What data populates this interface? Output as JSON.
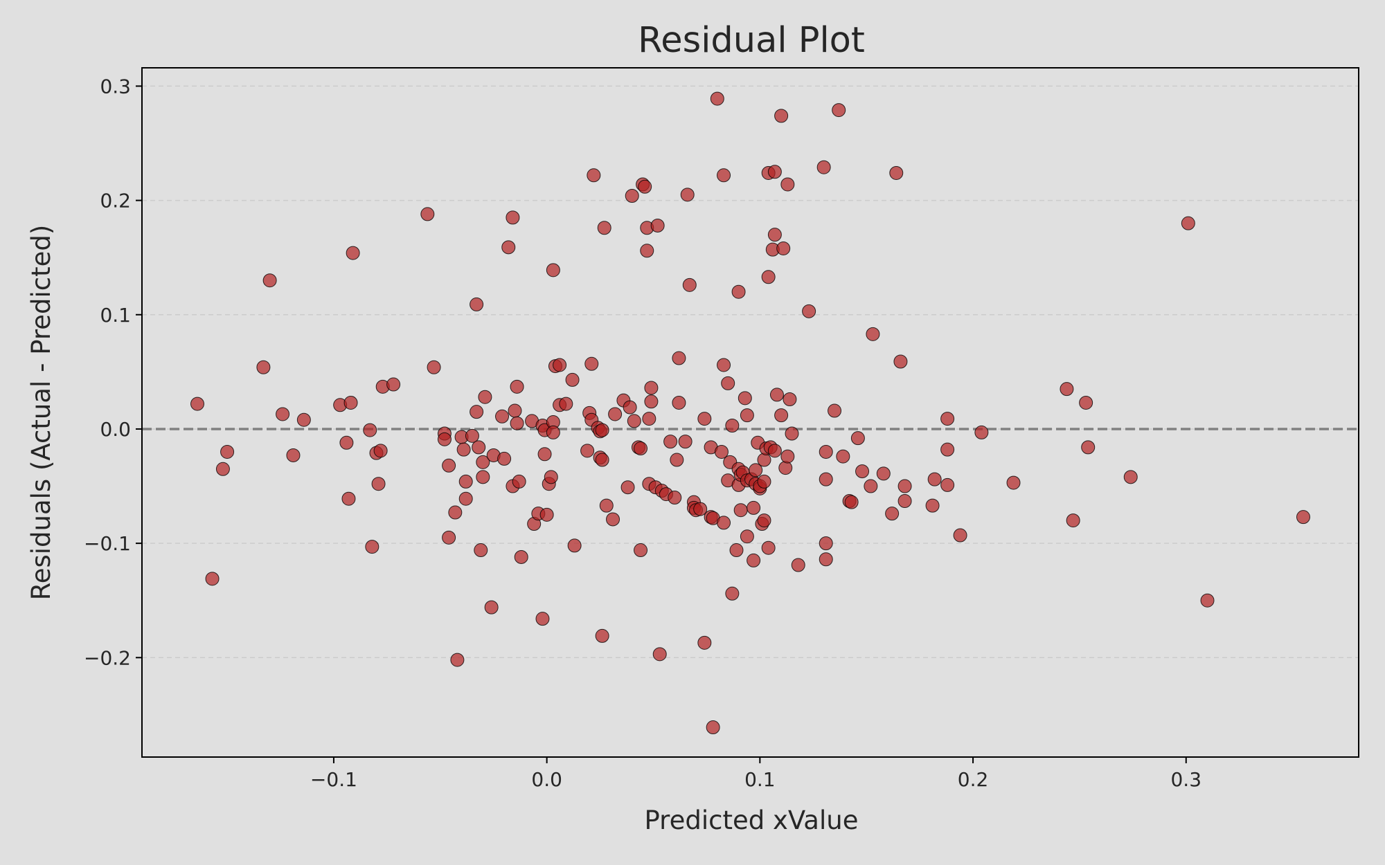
{
  "chart_data": {
    "type": "scatter",
    "title": "Residual Plot",
    "xlabel": "Predicted xValue",
    "ylabel": "Residuals (Actual - Predicted)",
    "xlim": [
      -0.19,
      0.381
    ],
    "ylim": [
      -0.287,
      0.316
    ],
    "xticks": [
      -0.1,
      0.0,
      0.1,
      0.2,
      0.3
    ],
    "xtick_labels": [
      "−0.1",
      "0.0",
      "0.1",
      "0.2",
      "0.3"
    ],
    "yticks": [
      -0.2,
      -0.1,
      0.0,
      0.1,
      0.2,
      0.3
    ],
    "ytick_labels": [
      "−0.2",
      "−0.1",
      "0.0",
      "0.1",
      "0.2",
      "0.3"
    ],
    "grid": "horizontal dashed",
    "zero_line": 0,
    "colors": {
      "background": "#e0e0e0",
      "point_fill": "#b22222",
      "point_edge": "#000000",
      "zero_line": "#808080",
      "grid": "#cccccc"
    },
    "points": [
      [
        -0.164,
        0.022
      ],
      [
        -0.157,
        -0.131
      ],
      [
        -0.152,
        -0.035
      ],
      [
        -0.15,
        -0.02
      ],
      [
        -0.133,
        0.054
      ],
      [
        -0.13,
        0.13
      ],
      [
        -0.124,
        0.013
      ],
      [
        -0.119,
        -0.023
      ],
      [
        -0.114,
        0.008
      ],
      [
        -0.097,
        0.021
      ],
      [
        -0.094,
        -0.012
      ],
      [
        -0.093,
        -0.061
      ],
      [
        -0.092,
        0.023
      ],
      [
        -0.091,
        0.154
      ],
      [
        -0.083,
        -0.001
      ],
      [
        -0.082,
        -0.103
      ],
      [
        -0.08,
        -0.021
      ],
      [
        -0.079,
        -0.048
      ],
      [
        -0.078,
        -0.019
      ],
      [
        -0.077,
        0.037
      ],
      [
        -0.072,
        0.039
      ],
      [
        -0.056,
        0.188
      ],
      [
        -0.053,
        0.054
      ],
      [
        -0.048,
        -0.004
      ],
      [
        -0.048,
        -0.009
      ],
      [
        -0.046,
        -0.032
      ],
      [
        -0.046,
        -0.095
      ],
      [
        -0.043,
        -0.073
      ],
      [
        -0.042,
        -0.202
      ],
      [
        -0.04,
        -0.007
      ],
      [
        -0.039,
        -0.018
      ],
      [
        -0.038,
        -0.046
      ],
      [
        -0.038,
        -0.061
      ],
      [
        -0.035,
        -0.006
      ],
      [
        -0.033,
        0.109
      ],
      [
        -0.033,
        0.015
      ],
      [
        -0.032,
        -0.016
      ],
      [
        -0.031,
        -0.106
      ],
      [
        -0.03,
        -0.029
      ],
      [
        -0.03,
        -0.042
      ],
      [
        -0.029,
        0.028
      ],
      [
        -0.026,
        -0.156
      ],
      [
        -0.025,
        -0.023
      ],
      [
        -0.021,
        0.011
      ],
      [
        -0.02,
        -0.026
      ],
      [
        -0.018,
        0.159
      ],
      [
        -0.016,
        -0.05
      ],
      [
        -0.016,
        0.185
      ],
      [
        -0.015,
        0.016
      ],
      [
        -0.014,
        0.005
      ],
      [
        -0.014,
        0.037
      ],
      [
        -0.013,
        -0.046
      ],
      [
        -0.012,
        -0.112
      ],
      [
        -0.007,
        0.007
      ],
      [
        -0.006,
        -0.083
      ],
      [
        -0.004,
        -0.074
      ],
      [
        -0.002,
        -0.166
      ],
      [
        -0.002,
        0.003
      ],
      [
        -0.001,
        -0.022
      ],
      [
        -0.001,
        -0.001
      ],
      [
        0.0,
        -0.075
      ],
      [
        0.001,
        -0.048
      ],
      [
        0.002,
        -0.042
      ],
      [
        0.003,
        0.139
      ],
      [
        0.003,
        0.006
      ],
      [
        0.003,
        -0.003
      ],
      [
        0.004,
        0.055
      ],
      [
        0.006,
        0.056
      ],
      [
        0.006,
        0.021
      ],
      [
        0.009,
        0.022
      ],
      [
        0.012,
        0.043
      ],
      [
        0.013,
        -0.102
      ],
      [
        0.019,
        -0.019
      ],
      [
        0.02,
        0.014
      ],
      [
        0.021,
        0.057
      ],
      [
        0.021,
        0.008
      ],
      [
        0.022,
        0.222
      ],
      [
        0.024,
        0.001
      ],
      [
        0.025,
        -0.025
      ],
      [
        0.025,
        -0.002
      ],
      [
        0.026,
        -0.001
      ],
      [
        0.026,
        -0.181
      ],
      [
        0.026,
        -0.027
      ],
      [
        0.027,
        0.176
      ],
      [
        0.028,
        -0.067
      ],
      [
        0.031,
        -0.079
      ],
      [
        0.032,
        0.013
      ],
      [
        0.036,
        0.025
      ],
      [
        0.038,
        -0.051
      ],
      [
        0.039,
        0.019
      ],
      [
        0.04,
        0.204
      ],
      [
        0.041,
        0.007
      ],
      [
        0.043,
        -0.016
      ],
      [
        0.044,
        -0.017
      ],
      [
        0.044,
        -0.106
      ],
      [
        0.045,
        0.214
      ],
      [
        0.046,
        0.212
      ],
      [
        0.047,
        0.156
      ],
      [
        0.047,
        0.176
      ],
      [
        0.048,
        -0.048
      ],
      [
        0.048,
        0.009
      ],
      [
        0.049,
        0.036
      ],
      [
        0.049,
        0.024
      ],
      [
        0.051,
        -0.051
      ],
      [
        0.052,
        0.178
      ],
      [
        0.053,
        -0.197
      ],
      [
        0.054,
        -0.054
      ],
      [
        0.056,
        -0.057
      ],
      [
        0.058,
        -0.011
      ],
      [
        0.06,
        -0.06
      ],
      [
        0.061,
        -0.027
      ],
      [
        0.062,
        0.062
      ],
      [
        0.062,
        0.023
      ],
      [
        0.065,
        -0.011
      ],
      [
        0.066,
        0.205
      ],
      [
        0.067,
        0.126
      ],
      [
        0.069,
        -0.064
      ],
      [
        0.069,
        -0.069
      ],
      [
        0.07,
        -0.071
      ],
      [
        0.072,
        -0.07
      ],
      [
        0.074,
        -0.187
      ],
      [
        0.074,
        0.009
      ],
      [
        0.077,
        -0.077
      ],
      [
        0.077,
        -0.016
      ],
      [
        0.078,
        -0.261
      ],
      [
        0.078,
        -0.078
      ],
      [
        0.08,
        0.289
      ],
      [
        0.082,
        -0.02
      ],
      [
        0.083,
        -0.082
      ],
      [
        0.083,
        0.056
      ],
      [
        0.083,
        0.222
      ],
      [
        0.085,
        -0.045
      ],
      [
        0.085,
        0.04
      ],
      [
        0.086,
        -0.029
      ],
      [
        0.087,
        -0.144
      ],
      [
        0.087,
        0.003
      ],
      [
        0.089,
        -0.106
      ],
      [
        0.09,
        0.12
      ],
      [
        0.09,
        -0.049
      ],
      [
        0.09,
        -0.035
      ],
      [
        0.091,
        -0.04
      ],
      [
        0.091,
        -0.071
      ],
      [
        0.092,
        -0.038
      ],
      [
        0.093,
        0.027
      ],
      [
        0.094,
        0.012
      ],
      [
        0.094,
        -0.045
      ],
      [
        0.094,
        -0.094
      ],
      [
        0.096,
        -0.044
      ],
      [
        0.097,
        -0.069
      ],
      [
        0.097,
        -0.115
      ],
      [
        0.098,
        -0.048
      ],
      [
        0.098,
        -0.036
      ],
      [
        0.099,
        -0.012
      ],
      [
        0.1,
        -0.052
      ],
      [
        0.1,
        -0.05
      ],
      [
        0.101,
        -0.083
      ],
      [
        0.102,
        -0.027
      ],
      [
        0.102,
        -0.08
      ],
      [
        0.102,
        -0.046
      ],
      [
        0.103,
        -0.017
      ],
      [
        0.104,
        -0.104
      ],
      [
        0.104,
        0.133
      ],
      [
        0.104,
        0.224
      ],
      [
        0.105,
        -0.016
      ],
      [
        0.106,
        0.157
      ],
      [
        0.107,
        0.225
      ],
      [
        0.107,
        -0.019
      ],
      [
        0.107,
        0.17
      ],
      [
        0.108,
        0.03
      ],
      [
        0.11,
        0.012
      ],
      [
        0.11,
        0.274
      ],
      [
        0.111,
        0.158
      ],
      [
        0.112,
        -0.034
      ],
      [
        0.113,
        -0.024
      ],
      [
        0.113,
        0.214
      ],
      [
        0.114,
        0.026
      ],
      [
        0.115,
        -0.004
      ],
      [
        0.118,
        -0.119
      ],
      [
        0.123,
        0.103
      ],
      [
        0.13,
        0.229
      ],
      [
        0.131,
        -0.02
      ],
      [
        0.131,
        -0.1
      ],
      [
        0.131,
        -0.114
      ],
      [
        0.131,
        -0.044
      ],
      [
        0.135,
        0.016
      ],
      [
        0.137,
        0.279
      ],
      [
        0.139,
        -0.024
      ],
      [
        0.142,
        -0.063
      ],
      [
        0.143,
        -0.064
      ],
      [
        0.146,
        -0.008
      ],
      [
        0.148,
        -0.037
      ],
      [
        0.152,
        -0.05
      ],
      [
        0.153,
        0.083
      ],
      [
        0.158,
        -0.039
      ],
      [
        0.162,
        -0.074
      ],
      [
        0.164,
        0.224
      ],
      [
        0.166,
        0.059
      ],
      [
        0.168,
        -0.05
      ],
      [
        0.168,
        -0.063
      ],
      [
        0.181,
        -0.067
      ],
      [
        0.182,
        -0.044
      ],
      [
        0.188,
        -0.018
      ],
      [
        0.188,
        -0.049
      ],
      [
        0.188,
        0.009
      ],
      [
        0.194,
        -0.093
      ],
      [
        0.204,
        -0.003
      ],
      [
        0.219,
        -0.047
      ],
      [
        0.244,
        0.035
      ],
      [
        0.247,
        -0.08
      ],
      [
        0.253,
        0.023
      ],
      [
        0.254,
        -0.016
      ],
      [
        0.274,
        -0.042
      ],
      [
        0.301,
        0.18
      ],
      [
        0.31,
        -0.15
      ],
      [
        0.355,
        -0.077
      ]
    ]
  }
}
